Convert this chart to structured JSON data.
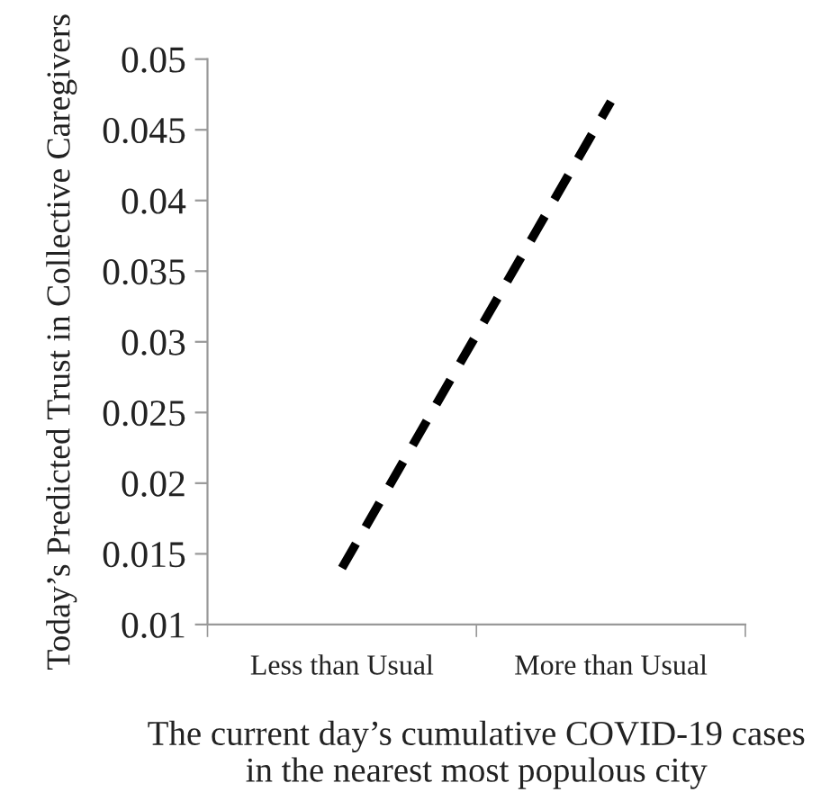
{
  "chart_data": {
    "type": "line",
    "xlabel": "The current day’s cumulative COVID-19 cases\nin the nearest most populous city",
    "ylabel": "Today’s Predicted Trust in Collective Caregivers",
    "categories": [
      "Less than Usual",
      "More than Usual"
    ],
    "series": [
      {
        "color": "#000000",
        "values": [
          0.014,
          0.047
        ]
      }
    ],
    "ylim": [
      0.01,
      0.05
    ],
    "yticks": [
      {
        "value": 0.01,
        "label": "0.01"
      },
      {
        "value": 0.015,
        "label": "0.015"
      },
      {
        "value": 0.02,
        "label": "0.02"
      },
      {
        "value": 0.025,
        "label": "0.025"
      },
      {
        "value": 0.03,
        "label": "0.03"
      },
      {
        "value": 0.035,
        "label": "0.035"
      },
      {
        "value": 0.04,
        "label": "0.04"
      },
      {
        "value": 0.045,
        "label": "0.045"
      },
      {
        "value": 0.05,
        "label": "0.05"
      }
    ],
    "marker": "none",
    "line_style": "dashed"
  }
}
